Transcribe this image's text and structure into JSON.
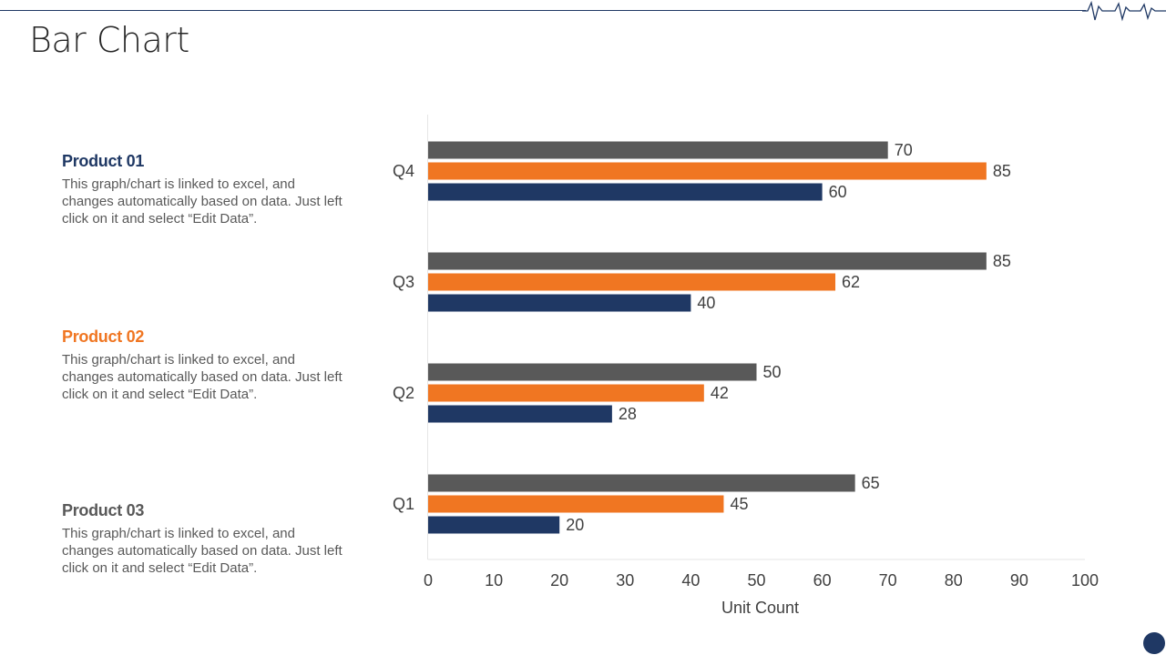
{
  "page": {
    "title": "Bar Chart"
  },
  "legend": [
    {
      "title": "Product 01",
      "color": "#1f3864",
      "description": "This graph/chart is linked to excel, and changes automatically based on data. Just left click on it and select “Edit Data”."
    },
    {
      "title": "Product 02",
      "color": "#f07622",
      "description": "This graph/chart is linked to excel, and changes automatically based on data. Just left click on it and select “Edit Data”."
    },
    {
      "title": "Product 03",
      "color": "#595959",
      "description": "This graph/chart is linked to excel, and changes automatically based on data. Just left click on it and select “Edit Data”."
    }
  ],
  "chart_data": {
    "type": "bar",
    "orientation": "horizontal",
    "title": "",
    "xlabel": "Unit Count",
    "ylabel": "",
    "xlim": [
      0,
      100
    ],
    "xticks": [
      0,
      10,
      20,
      30,
      40,
      50,
      60,
      70,
      80,
      90,
      100
    ],
    "categories": [
      "Q1",
      "Q2",
      "Q3",
      "Q4"
    ],
    "series": [
      {
        "name": "Product 03",
        "color": "#595959",
        "values": [
          65,
          50,
          85,
          70
        ]
      },
      {
        "name": "Product 02",
        "color": "#f07622",
        "values": [
          45,
          42,
          62,
          85
        ]
      },
      {
        "name": "Product 01",
        "color": "#1f3864",
        "values": [
          20,
          28,
          40,
          60
        ]
      }
    ],
    "data_labels": true,
    "grid": false
  }
}
